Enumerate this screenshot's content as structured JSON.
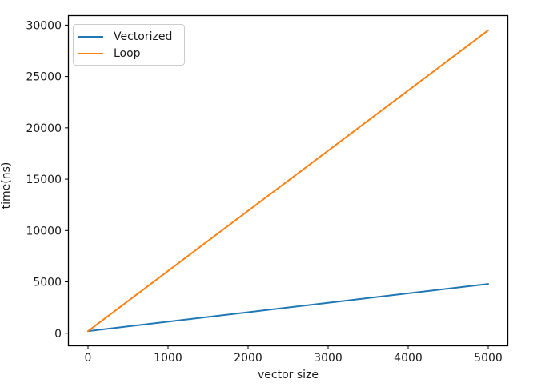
{
  "chart_data": {
    "type": "line",
    "title": "",
    "xlabel": "vector size",
    "ylabel": "time(ns)",
    "xlim": [
      -250,
      5250
    ],
    "ylim": [
      -1265,
      30965
    ],
    "x_ticks": [
      0,
      1000,
      2000,
      3000,
      4000,
      5000
    ],
    "y_ticks": [
      0,
      5000,
      10000,
      15000,
      20000,
      25000,
      30000
    ],
    "grid": false,
    "legend_position": "upper-left",
    "spine_color": "#000000",
    "text_color": "#1a1a1a",
    "series": [
      {
        "name": "Vectorized",
        "color": "#1f77b4",
        "x": [
          0,
          5000
        ],
        "y": [
          200,
          4800
        ]
      },
      {
        "name": "Loop",
        "color": "#ff7f0e",
        "x": [
          0,
          5000
        ],
        "y": [
          200,
          29500
        ]
      }
    ]
  }
}
